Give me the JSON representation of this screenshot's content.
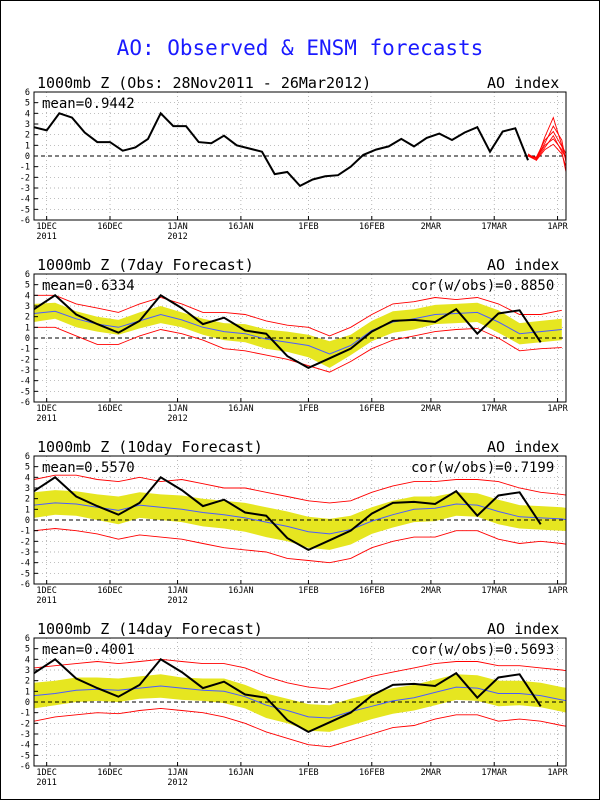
{
  "page_title": "AO: Observed & ENSM forecasts",
  "colors": {
    "title": "#1a1aff",
    "observed": "#000000",
    "ensemble_range": "#ff0000",
    "ensemble_spread": "#e6e620",
    "ensemble_mean": "#4b5cff"
  },
  "common_axes": {
    "yticks": [
      6,
      5,
      4,
      3,
      2,
      1,
      0,
      -1,
      -2,
      -3,
      -4,
      -5,
      -6
    ],
    "ylim": [
      -6,
      6
    ],
    "xlim": [
      0,
      126
    ],
    "xticks": [
      {
        "day": 3,
        "label": "1DEC",
        "sub": "2011"
      },
      {
        "day": 18,
        "label": "16DEC",
        "sub": ""
      },
      {
        "day": 34,
        "label": "1JAN",
        "sub": "2012"
      },
      {
        "day": 49,
        "label": "16JAN",
        "sub": ""
      },
      {
        "day": 65,
        "label": "1FEB",
        "sub": ""
      },
      {
        "day": 80,
        "label": "16FEB",
        "sub": ""
      },
      {
        "day": 94,
        "label": "2MAR",
        "sub": ""
      },
      {
        "day": 109,
        "label": "17MAR",
        "sub": ""
      },
      {
        "day": 124,
        "label": "1APR",
        "sub": ""
      }
    ]
  },
  "panels": [
    {
      "title": "1000mb Z (Obs: 28Nov2011 - 26Mar2012)",
      "right": "AO index",
      "mean": "mean=0.9442",
      "cor": ""
    },
    {
      "title": "1000mb Z (7day Forecast)",
      "right": "AO index",
      "mean": "mean=0.6334",
      "cor": "cor(w/obs)=0.8850"
    },
    {
      "title": "1000mb Z (10day Forecast)",
      "right": "AO index",
      "mean": "mean=0.5570",
      "cor": "cor(w/obs)=0.7199"
    },
    {
      "title": "1000mb Z (14day Forecast)",
      "right": "AO index",
      "mean": "mean=0.4001",
      "cor": "cor(w/obs)=0.5693"
    }
  ],
  "chart_data": [
    {
      "type": "line",
      "title": "1000mb Z (Obs: 28Nov2011 - 26Mar2012)",
      "ylabel": "AO index",
      "mean": 0.9442,
      "ylim": [
        -6,
        6
      ],
      "observed": {
        "x": [
          0,
          3,
          6,
          9,
          12,
          15,
          18,
          21,
          24,
          27,
          30,
          33,
          36,
          39,
          42,
          45,
          48,
          51,
          54,
          57,
          60,
          63,
          66,
          69,
          72,
          75,
          78,
          81,
          84,
          87,
          90,
          93,
          96,
          99,
          102,
          105,
          108,
          111,
          114,
          117
        ],
        "y": [
          2.7,
          2.4,
          4.0,
          3.6,
          2.2,
          1.3,
          1.3,
          0.5,
          0.8,
          1.6,
          4.0,
          2.8,
          2.8,
          1.3,
          1.2,
          1.9,
          1.0,
          0.7,
          0.4,
          -1.7,
          -1.5,
          -2.8,
          -2.2,
          -1.9,
          -1.8,
          -1.0,
          0.1,
          0.6,
          0.9,
          1.6,
          0.9,
          1.7,
          2.1,
          1.5,
          2.2,
          2.7,
          0.4,
          2.3,
          2.6,
          -0.4
        ]
      },
      "forecast_members": [
        {
          "x": [
            117,
            119,
            121,
            123,
            125,
            126
          ],
          "y": [
            0.0,
            -0.4,
            1.8,
            3.6,
            1.0,
            0.2
          ]
        },
        {
          "x": [
            117,
            119,
            121,
            123,
            125,
            126
          ],
          "y": [
            0.1,
            -0.2,
            1.2,
            2.8,
            1.5,
            -0.6
          ]
        },
        {
          "x": [
            117,
            119,
            121,
            123,
            125,
            126
          ],
          "y": [
            0.2,
            -0.3,
            0.8,
            1.9,
            0.4,
            -1.5
          ]
        },
        {
          "x": [
            117,
            119,
            121,
            123,
            125,
            126
          ],
          "y": [
            0.0,
            -0.1,
            1.5,
            2.3,
            0.9,
            -0.2
          ]
        },
        {
          "x": [
            117,
            119,
            121,
            123,
            125,
            126
          ],
          "y": [
            0.1,
            -0.4,
            0.6,
            1.1,
            0.2,
            -1.0
          ]
        },
        {
          "x": [
            117,
            119,
            121,
            123,
            125,
            126
          ],
          "y": [
            0.0,
            -0.2,
            1.0,
            1.6,
            0.6,
            -0.3
          ]
        }
      ]
    },
    {
      "type": "line",
      "title": "1000mb Z (7day Forecast)",
      "ylabel": "AO index",
      "mean": 0.6334,
      "correlation": 0.885,
      "ylim": [
        -6,
        6
      ],
      "x": [
        0,
        5,
        10,
        15,
        20,
        25,
        30,
        35,
        40,
        45,
        50,
        55,
        60,
        65,
        70,
        75,
        80,
        85,
        90,
        95,
        100,
        105,
        110,
        115,
        120,
        125
      ],
      "spread_upper": [
        3.2,
        3.3,
        2.5,
        2.0,
        1.7,
        2.4,
        3.0,
        2.4,
        1.8,
        1.4,
        1.3,
        0.8,
        0.6,
        0.3,
        -0.3,
        0.3,
        1.6,
        2.5,
        2.7,
        3.1,
        3.2,
        3.3,
        2.6,
        1.4,
        1.6,
        1.8
      ],
      "spread_lower": [
        1.5,
        1.8,
        1.0,
        0.6,
        0.3,
        0.9,
        1.4,
        1.0,
        0.3,
        -0.2,
        -0.4,
        -1.0,
        -1.3,
        -1.8,
        -2.8,
        -1.6,
        -0.3,
        0.5,
        0.8,
        1.3,
        1.4,
        1.5,
        0.5,
        -0.6,
        -0.4,
        -0.2
      ],
      "ensemble_mean": [
        2.3,
        2.5,
        1.8,
        1.3,
        1.0,
        1.6,
        2.2,
        1.7,
        1.0,
        0.6,
        0.4,
        -0.1,
        -0.4,
        -0.7,
        -1.5,
        -0.7,
        0.7,
        1.5,
        1.8,
        2.2,
        2.3,
        2.4,
        1.5,
        0.4,
        0.6,
        0.8
      ],
      "range_upper": [
        4.0,
        4.0,
        3.2,
        2.8,
        2.4,
        3.2,
        3.8,
        3.2,
        2.4,
        2.4,
        2.2,
        1.6,
        1.2,
        1.0,
        0.2,
        1.0,
        2.2,
        3.2,
        3.4,
        3.8,
        3.6,
        3.8,
        3.2,
        2.2,
        2.2,
        2.6
      ],
      "range_lower": [
        1.0,
        1.0,
        0.2,
        -0.6,
        -0.6,
        0.2,
        0.8,
        0.4,
        -0.2,
        -1.0,
        -1.2,
        -1.6,
        -2.0,
        -2.6,
        -3.2,
        -2.2,
        -1.0,
        -0.2,
        0.2,
        0.6,
        0.8,
        0.9,
        0.0,
        -1.2,
        -1.0,
        -0.9
      ],
      "observed": {
        "x": [
          0,
          5,
          10,
          15,
          20,
          25,
          30,
          35,
          40,
          45,
          50,
          55,
          60,
          65,
          70,
          75,
          80,
          85,
          90,
          95,
          100,
          105,
          110,
          115,
          120
        ],
        "y": [
          2.7,
          4.0,
          2.2,
          1.3,
          0.5,
          1.6,
          4.0,
          2.8,
          1.3,
          1.9,
          0.7,
          0.4,
          -1.7,
          -2.8,
          -1.9,
          -1.0,
          0.6,
          1.6,
          1.7,
          1.5,
          2.7,
          0.4,
          2.3,
          2.6,
          -0.4
        ]
      }
    },
    {
      "type": "line",
      "title": "1000mb Z (10day Forecast)",
      "ylabel": "AO index",
      "mean": 0.557,
      "correlation": 0.7199,
      "ylim": [
        -6,
        6
      ],
      "x": [
        0,
        5,
        10,
        15,
        20,
        25,
        30,
        35,
        40,
        45,
        50,
        55,
        60,
        65,
        70,
        75,
        80,
        85,
        90,
        95,
        100,
        105,
        110,
        115,
        120,
        125,
        128
      ],
      "spread_upper": [
        2.6,
        2.8,
        2.7,
        2.4,
        2.2,
        2.6,
        2.4,
        2.3,
        2.0,
        1.8,
        1.6,
        1.2,
        0.8,
        0.3,
        0.1,
        0.4,
        1.2,
        1.8,
        2.2,
        2.2,
        2.6,
        2.5,
        1.9,
        1.4,
        1.3,
        1.2,
        1.0
      ],
      "spread_lower": [
        0.2,
        0.5,
        0.4,
        0.0,
        -0.4,
        0.2,
        0.0,
        -0.2,
        -0.6,
        -0.8,
        -1.1,
        -1.6,
        -2.0,
        -2.6,
        -2.8,
        -2.3,
        -1.3,
        -0.7,
        -0.2,
        -0.1,
        0.4,
        0.3,
        -0.4,
        -0.8,
        -0.9,
        -1.0,
        -1.1
      ],
      "ensemble_mean": [
        1.4,
        1.6,
        1.5,
        1.2,
        0.9,
        1.4,
        1.2,
        1.0,
        0.7,
        0.5,
        0.2,
        -0.2,
        -0.6,
        -1.1,
        -1.3,
        -0.9,
        -0.1,
        0.5,
        1.0,
        1.1,
        1.5,
        1.4,
        0.8,
        0.3,
        0.2,
        0.1,
        -0.1
      ],
      "range_upper": [
        3.8,
        4.2,
        4.2,
        3.8,
        3.6,
        4.0,
        3.6,
        3.8,
        3.4,
        3.0,
        3.0,
        2.6,
        2.2,
        1.8,
        1.6,
        1.8,
        2.6,
        3.2,
        3.6,
        3.6,
        3.8,
        3.8,
        3.6,
        3.0,
        2.6,
        2.4,
        2.2
      ],
      "range_lower": [
        -1.0,
        -0.8,
        -1.0,
        -1.3,
        -1.8,
        -1.4,
        -1.6,
        -1.8,
        -2.2,
        -2.6,
        -2.8,
        -3.0,
        -3.6,
        -3.8,
        -4.0,
        -3.6,
        -2.6,
        -2.0,
        -1.6,
        -1.6,
        -1.0,
        -1.0,
        -1.8,
        -2.2,
        -2.0,
        -2.2,
        -2.4
      ],
      "observed": {
        "x": [
          0,
          5,
          10,
          15,
          20,
          25,
          30,
          35,
          40,
          45,
          50,
          55,
          60,
          65,
          70,
          75,
          80,
          85,
          90,
          95,
          100,
          105,
          110,
          115,
          120
        ],
        "y": [
          2.7,
          4.0,
          2.2,
          1.3,
          0.5,
          1.6,
          4.0,
          2.8,
          1.3,
          1.9,
          0.7,
          0.4,
          -1.7,
          -2.8,
          -1.9,
          -1.0,
          0.6,
          1.6,
          1.7,
          1.5,
          2.7,
          0.4,
          2.3,
          2.6,
          -0.4
        ]
      }
    },
    {
      "type": "line",
      "title": "1000mb Z (14day Forecast)",
      "ylabel": "AO index",
      "mean": 0.4001,
      "correlation": 0.5693,
      "ylim": [
        -6,
        6
      ],
      "x": [
        0,
        5,
        10,
        15,
        20,
        25,
        30,
        35,
        40,
        45,
        50,
        55,
        60,
        65,
        70,
        75,
        80,
        85,
        90,
        95,
        100,
        105,
        110,
        115,
        120,
        125,
        128
      ],
      "spread_upper": [
        1.8,
        2.0,
        2.3,
        2.3,
        2.2,
        2.4,
        2.6,
        2.3,
        2.2,
        2.2,
        1.6,
        0.8,
        0.3,
        -0.2,
        -0.3,
        0.3,
        0.8,
        1.3,
        1.6,
        2.1,
        2.6,
        2.5,
        2.0,
        2.0,
        1.8,
        1.4,
        1.2
      ],
      "spread_lower": [
        -0.6,
        -0.3,
        0.0,
        0.1,
        0.0,
        0.3,
        0.4,
        0.2,
        0.1,
        -0.1,
        -0.6,
        -1.5,
        -2.0,
        -2.7,
        -2.8,
        -2.2,
        -1.6,
        -1.1,
        -0.8,
        -0.3,
        0.2,
        0.1,
        -0.4,
        -0.3,
        -0.5,
        -0.9,
        -1.2
      ],
      "ensemble_mean": [
        0.6,
        0.8,
        1.1,
        1.2,
        1.1,
        1.3,
        1.5,
        1.3,
        1.1,
        1.0,
        0.5,
        -0.3,
        -0.8,
        -1.4,
        -1.5,
        -0.9,
        -0.4,
        0.1,
        0.4,
        0.9,
        1.4,
        1.3,
        0.8,
        0.8,
        0.6,
        0.2,
        0.0
      ],
      "range_upper": [
        3.2,
        3.4,
        3.6,
        3.8,
        3.6,
        3.8,
        4.0,
        3.8,
        3.6,
        3.6,
        3.2,
        2.4,
        1.8,
        1.4,
        1.2,
        1.8,
        2.4,
        2.8,
        3.2,
        3.6,
        3.8,
        3.8,
        3.4,
        3.4,
        3.2,
        3.0,
        2.8
      ],
      "range_lower": [
        -1.8,
        -1.4,
        -1.2,
        -1.0,
        -1.1,
        -0.8,
        -0.6,
        -0.8,
        -1.0,
        -1.4,
        -2.0,
        -2.8,
        -3.4,
        -4.0,
        -4.2,
        -3.6,
        -3.0,
        -2.4,
        -2.2,
        -1.6,
        -1.2,
        -1.2,
        -1.8,
        -1.6,
        -1.8,
        -2.2,
        -2.4
      ],
      "observed": {
        "x": [
          0,
          5,
          10,
          15,
          20,
          25,
          30,
          35,
          40,
          45,
          50,
          55,
          60,
          65,
          70,
          75,
          80,
          85,
          90,
          95,
          100,
          105,
          110,
          115,
          120
        ],
        "y": [
          2.7,
          4.0,
          2.2,
          1.3,
          0.5,
          1.6,
          4.0,
          2.8,
          1.3,
          1.9,
          0.7,
          0.4,
          -1.7,
          -2.8,
          -1.9,
          -1.0,
          0.6,
          1.6,
          1.7,
          1.5,
          2.7,
          0.4,
          2.3,
          2.6,
          -0.4
        ]
      }
    }
  ]
}
